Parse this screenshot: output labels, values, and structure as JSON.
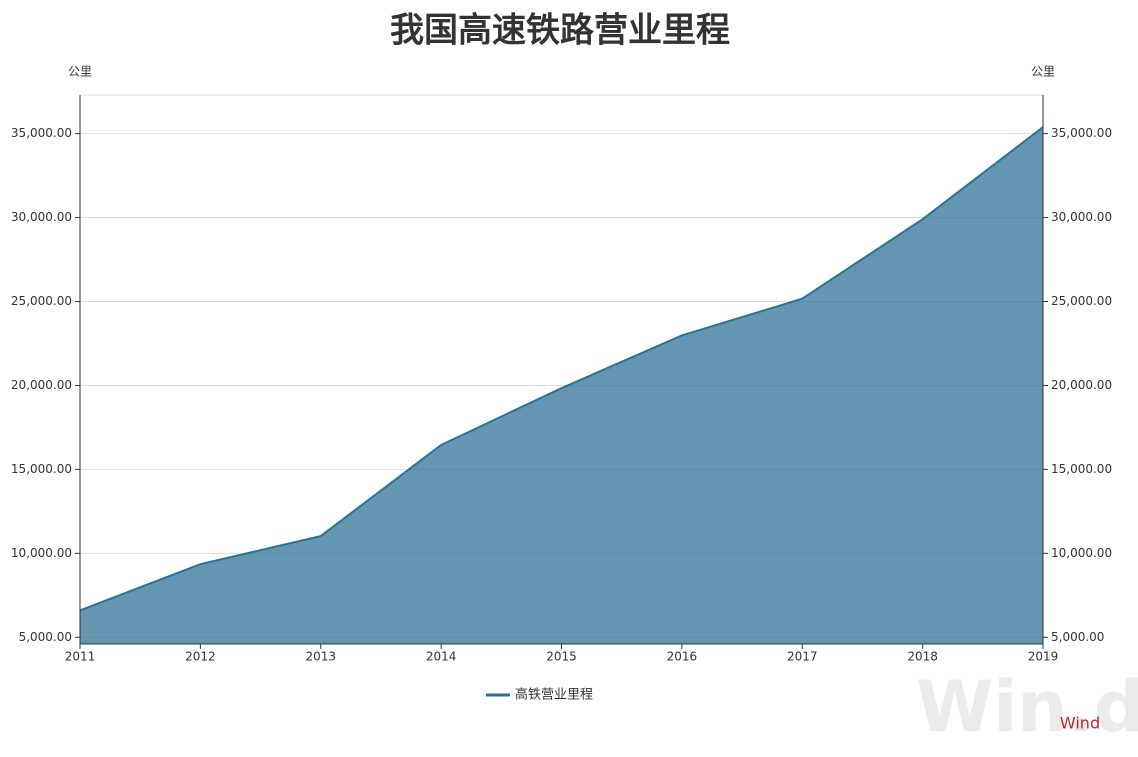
{
  "chart_data": {
    "type": "area",
    "title": "我国高速铁路营业里程",
    "y_unit": "公里",
    "y2_unit": "公里",
    "x": [
      2011,
      2012,
      2013,
      2014,
      2015,
      2016,
      2017,
      2018,
      2019
    ],
    "xlim": [
      2011,
      2019
    ],
    "xticks": [
      2011,
      2012,
      2013,
      2014,
      2015,
      2016,
      2017,
      2018,
      2019
    ],
    "series": [
      {
        "name": "高铁营业里程",
        "color": "#2e7197",
        "values": [
          6600,
          9356,
          11028,
          16456,
          19838,
          22980,
          25164,
          29904,
          35388
        ]
      }
    ],
    "ylim": [
      4600,
      37300
    ],
    "yticks": [
      {
        "value": 5000,
        "label": "5,000.00"
      },
      {
        "value": 10000,
        "label": "10,000.00"
      },
      {
        "value": 15000,
        "label": "15,000.00"
      },
      {
        "value": 20000,
        "label": "20,000.00"
      },
      {
        "value": 25000,
        "label": "25,000.00"
      },
      {
        "value": 30000,
        "label": "30,000.00"
      },
      {
        "value": 35000,
        "label": "35,000.00"
      }
    ],
    "y2lim": [
      4600,
      37300
    ],
    "y2ticks": [
      {
        "value": 5000,
        "label": "5,000.00"
      },
      {
        "value": 10000,
        "label": "10,000.00"
      },
      {
        "value": 15000,
        "label": "15,000.00"
      },
      {
        "value": 20000,
        "label": "20,000.00"
      },
      {
        "value": 25000,
        "label": "25,000.00"
      },
      {
        "value": 30000,
        "label": "30,000.00"
      },
      {
        "value": 35000,
        "label": "35,000.00"
      }
    ],
    "grid": true,
    "legend": "bottom",
    "source": "Wind",
    "watermark": "Win.d"
  }
}
